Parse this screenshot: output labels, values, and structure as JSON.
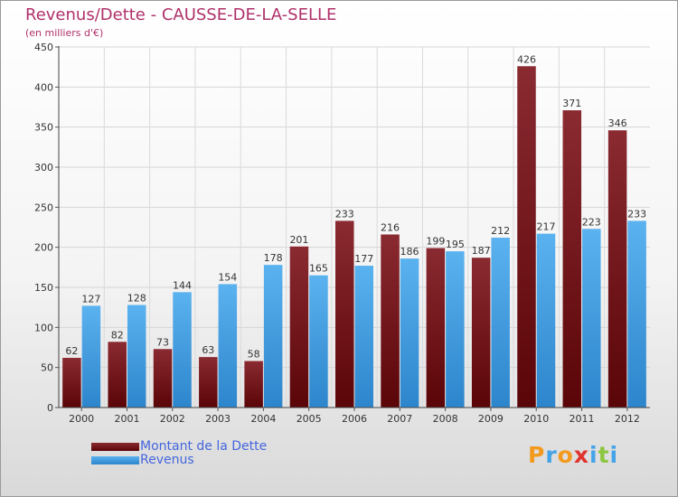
{
  "header": {
    "title": "Revenus/Dette - CAUSSE-DE-LA-SELLE",
    "subtitle": "(en milliers d'€)"
  },
  "legend": [
    {
      "label": "Montant de la Dette",
      "color": "#6b0f14"
    },
    {
      "label": "Revenus",
      "color": "#3f9ee0"
    }
  ],
  "logo": {
    "text": "Proxiti",
    "colors": [
      "#f39a1e",
      "#45a3e8",
      "#f39a1e",
      "#e0332e",
      "#45a3e8",
      "#8cc63f",
      "#45a3e8"
    ]
  },
  "chart_data": {
    "type": "bar",
    "categories": [
      "2000",
      "2001",
      "2002",
      "2003",
      "2004",
      "2005",
      "2006",
      "2007",
      "2008",
      "2009",
      "2010",
      "2011",
      "2012"
    ],
    "series": [
      {
        "name": "Montant de la Dette",
        "color": "#6b0f14",
        "values": [
          62,
          82,
          73,
          63,
          58,
          201,
          233,
          216,
          199,
          187,
          426,
          371,
          346
        ]
      },
      {
        "name": "Revenus",
        "color": "#3f9ee0",
        "values": [
          127,
          128,
          144,
          154,
          178,
          165,
          177,
          186,
          195,
          212,
          217,
          223,
          233
        ]
      }
    ],
    "title": "Revenus/Dette - CAUSSE-DE-LA-SELLE",
    "ylabel": "(en milliers d'€)",
    "ylim": [
      0,
      450
    ],
    "yticks": [
      0,
      50,
      100,
      150,
      200,
      250,
      300,
      350,
      400,
      450
    ],
    "grid": true,
    "legend_position": "bottom-left"
  }
}
